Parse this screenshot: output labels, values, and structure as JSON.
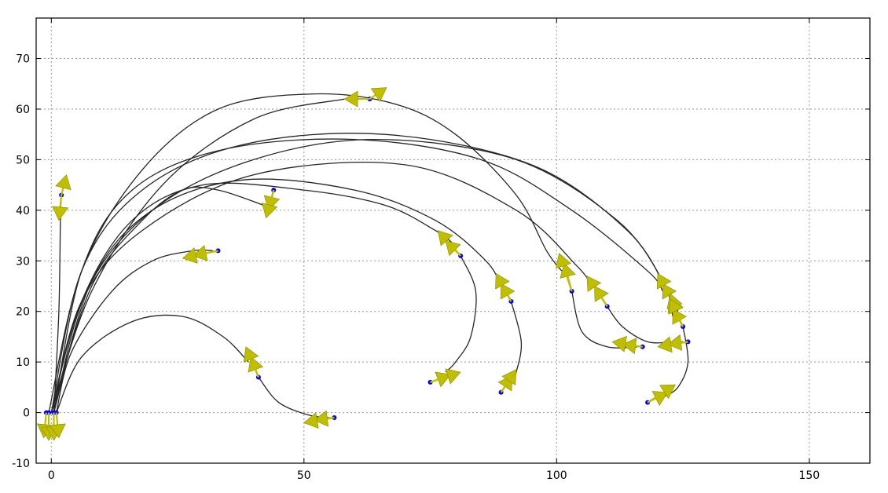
{
  "chart_data": {
    "type": "line",
    "title": "",
    "xlabel": "",
    "ylabel": "",
    "xlim": [
      -3,
      162
    ],
    "ylim": [
      -10,
      78
    ],
    "grid": true,
    "xticks": [
      0,
      50,
      100,
      150
    ],
    "yticks": [
      -10,
      0,
      10,
      20,
      30,
      40,
      50,
      60,
      70
    ],
    "colors": {
      "curve": "#262626",
      "point": "#0000ff",
      "arrow": "#bfbf00",
      "grid": "#999999"
    },
    "trajectories": [
      {
        "path": [
          [
            -0.5,
            0
          ],
          [
            6,
            28
          ],
          [
            18,
            48
          ],
          [
            33,
            60
          ],
          [
            52,
            63
          ],
          [
            68,
            61
          ],
          [
            80,
            55
          ],
          [
            92,
            43
          ],
          [
            98,
            32
          ],
          [
            101,
            28
          ]
        ],
        "point": [
          103,
          24
        ],
        "arrows": [
          [
            101.5,
            29.5
          ],
          [
            100.5,
            31.5
          ]
        ]
      },
      {
        "path": [
          [
            0,
            0
          ],
          [
            8,
            25
          ],
          [
            18,
            38
          ],
          [
            26,
            44
          ],
          [
            33,
            44
          ],
          [
            42,
            41
          ]
        ],
        "point": [
          44,
          44
        ],
        "arrows": [
          [
            43,
            40
          ],
          [
            42.5,
            38.5
          ]
        ]
      },
      {
        "path": [
          [
            1,
            0
          ],
          [
            4,
            12
          ],
          [
            12,
            24
          ],
          [
            20,
            30
          ],
          [
            28,
            32
          ],
          [
            32,
            32
          ]
        ],
        "point": [
          33,
          32
        ],
        "arrows": [
          [
            28,
            31
          ],
          [
            26,
            30.5
          ]
        ]
      },
      {
        "path": [
          [
            1,
            0
          ],
          [
            6,
            11
          ],
          [
            16,
            18
          ],
          [
            26,
            19
          ],
          [
            34,
            15
          ],
          [
            39,
            10
          ]
        ],
        "point": [
          41,
          7
        ],
        "arrows": [
          [
            39.5,
            11
          ],
          [
            38.5,
            13
          ]
        ]
      },
      {
        "path": [
          [
            41,
            7
          ],
          [
            45,
            2
          ],
          [
            51,
            -0.5
          ],
          [
            55,
            -1
          ]
        ],
        "point": [
          56,
          -1
        ],
        "arrows": [
          [
            52,
            -1.5
          ],
          [
            50,
            -2
          ]
        ]
      },
      {
        "path": [
          [
            0.5,
            0
          ],
          [
            1.5,
            20
          ],
          [
            1.8,
            38
          ],
          [
            2,
            43
          ]
        ],
        "point": [
          2,
          43
        ],
        "arrows": [
          [
            1.5,
            38
          ],
          [
            3,
            47
          ]
        ]
      },
      {
        "path": [
          [
            0,
            0
          ],
          [
            8,
            24
          ],
          [
            22,
            45
          ],
          [
            40,
            58
          ],
          [
            58,
            62
          ]
        ],
        "point": [
          63,
          62
        ],
        "arrows": [
          [
            58,
            62
          ],
          [
            66,
            64
          ]
        ]
      },
      {
        "path": [
          [
            0,
            0
          ],
          [
            6,
            22
          ],
          [
            16,
            38
          ],
          [
            30,
            45
          ],
          [
            50,
            44
          ],
          [
            66,
            41
          ],
          [
            76,
            36
          ],
          [
            80,
            33
          ]
        ],
        "point": [
          81,
          31
        ],
        "arrows": [
          [
            78,
            34
          ],
          [
            76.5,
            36
          ]
        ]
      },
      {
        "path": [
          [
            81,
            31
          ],
          [
            84,
            24
          ],
          [
            83,
            15
          ],
          [
            80,
            10
          ],
          [
            78,
            8
          ]
        ],
        "point": [
          75,
          6
        ],
        "arrows": [
          [
            79,
            7.5
          ],
          [
            81,
            8
          ]
        ]
      },
      {
        "path": [
          [
            0.5,
            0
          ],
          [
            8,
            26
          ],
          [
            20,
            40
          ],
          [
            38,
            46
          ],
          [
            60,
            44
          ],
          [
            76,
            38
          ],
          [
            86,
            30
          ],
          [
            89,
            25
          ]
        ],
        "point": [
          91,
          22
        ],
        "arrows": [
          [
            89,
            25.5
          ],
          [
            88,
            27.5
          ]
        ]
      },
      {
        "path": [
          [
            91,
            22
          ],
          [
            93,
            14
          ],
          [
            92,
            8
          ],
          [
            91,
            6
          ]
        ],
        "point": [
          89,
          4
        ],
        "arrows": [
          [
            91,
            7
          ],
          [
            92,
            8.5
          ]
        ]
      },
      {
        "path": [
          [
            0,
            0
          ],
          [
            6,
            22
          ],
          [
            18,
            36
          ],
          [
            40,
            47
          ],
          [
            70,
            49
          ],
          [
            92,
            40
          ],
          [
            104,
            29
          ],
          [
            107,
            25
          ]
        ],
        "point": [
          110,
          21
        ],
        "arrows": [
          [
            107.5,
            25
          ],
          [
            106,
            27
          ]
        ]
      },
      {
        "path": [
          [
            103,
            24
          ],
          [
            105,
            16
          ],
          [
            110,
            13
          ],
          [
            116,
            13
          ]
        ],
        "point": [
          117,
          13
        ],
        "arrows": [
          [
            113,
            13.5
          ],
          [
            111,
            14
          ]
        ]
      },
      {
        "path": [
          [
            110,
            21
          ],
          [
            113,
            17
          ],
          [
            118,
            14
          ],
          [
            123,
            14
          ],
          [
            125,
            14
          ]
        ],
        "point": [
          126,
          14
        ],
        "arrows": [
          [
            122,
            13.5
          ],
          [
            120,
            13
          ]
        ]
      },
      {
        "path": [
          [
            0.5,
            0
          ],
          [
            6,
            28
          ],
          [
            16,
            44
          ],
          [
            34,
            52
          ],
          [
            60,
            54
          ],
          [
            85,
            50
          ],
          [
            103,
            40
          ],
          [
            118,
            28
          ],
          [
            121,
            24
          ]
        ],
        "point": [
          123,
          22
        ],
        "arrows": [
          [
            121,
            25.5
          ],
          [
            120,
            27.5
          ]
        ]
      },
      {
        "path": [
          [
            0,
            0
          ],
          [
            6,
            28
          ],
          [
            18,
            44
          ],
          [
            38,
            53
          ],
          [
            66,
            55
          ],
          [
            95,
            49
          ],
          [
            114,
            36
          ],
          [
            122,
            24
          ],
          [
            124,
            20
          ]
        ],
        "point": [
          124,
          19
        ],
        "arrows": [
          [
            123,
            21.5
          ],
          [
            122.5,
            23.5
          ]
        ]
      },
      {
        "path": [
          [
            0.5,
            0
          ],
          [
            7,
            24
          ],
          [
            20,
            40
          ],
          [
            40,
            50
          ],
          [
            64,
            54
          ],
          [
            92,
            50
          ],
          [
            112,
            38
          ],
          [
            121,
            26
          ],
          [
            123,
            19
          ]
        ],
        "point": [
          125,
          17
        ],
        "arrows": [
          [
            123,
            20.5
          ],
          [
            122.5,
            22.5
          ]
        ]
      },
      {
        "path": [
          [
            125,
            17
          ],
          [
            126,
            10
          ],
          [
            124,
            5
          ],
          [
            121,
            3
          ]
        ],
        "point": [
          118,
          2
        ],
        "arrows": [
          [
            122,
            4
          ],
          [
            123.5,
            5.5
          ]
        ]
      }
    ],
    "origin_arrows": [
      {
        "point": [
          -1,
          0
        ],
        "tip": [
          -1.5,
          -5
        ]
      },
      {
        "point": [
          -0.5,
          0
        ],
        "tip": [
          -0.5,
          -5.5
        ]
      },
      {
        "point": [
          0.5,
          0
        ],
        "tip": [
          0.5,
          -5.5
        ]
      },
      {
        "point": [
          1,
          0
        ],
        "tip": [
          1.5,
          -5
        ]
      }
    ]
  }
}
